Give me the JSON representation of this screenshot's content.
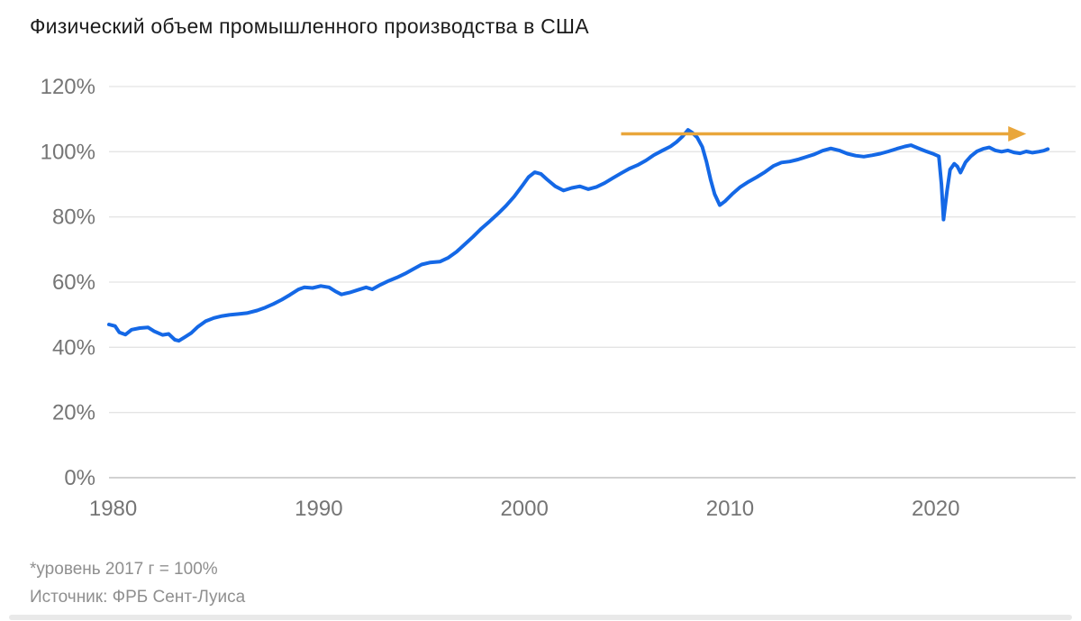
{
  "title": "Физический объем промышленного производства в США",
  "footnotes": {
    "note": "*уровень 2017 г = 100%",
    "source": "Источник: ФРБ Сент-Луиса"
  },
  "colors": {
    "line_blue": "#1468e6",
    "arrow_amber": "#e9a63b",
    "grid": "#e4e4e4",
    "zero_line": "#d2d2d2",
    "axis_text": "#757575",
    "title_text": "#1c1c1c",
    "footnote_text": "#8f8f8f"
  },
  "chart_data": {
    "type": "line",
    "title": "Физический объем промышленного производства в США",
    "xlabel": "",
    "ylabel": "",
    "grid": "horizontal",
    "legend": "none",
    "x_axis": {
      "range": [
        1979.8,
        2026.8
      ],
      "ticks": [
        {
          "value": 1980,
          "label": "1980"
        },
        {
          "value": 1990,
          "label": "1990"
        },
        {
          "value": 2000,
          "label": "2000"
        },
        {
          "value": 2010,
          "label": "2010"
        },
        {
          "value": 2020,
          "label": "2020"
        }
      ]
    },
    "y_axis": {
      "range": [
        0,
        120
      ],
      "ticks": [
        {
          "value": 0,
          "label": "0%"
        },
        {
          "value": 20,
          "label": "20%"
        },
        {
          "value": 40,
          "label": "40%"
        },
        {
          "value": 60,
          "label": "60%"
        },
        {
          "value": 80,
          "label": "80%"
        },
        {
          "value": 100,
          "label": "100%"
        },
        {
          "value": 120,
          "label": "120%"
        }
      ]
    },
    "annotation_arrow": {
      "from_year": 2004.7,
      "to_year": 2024.4,
      "value_pct": 105.5,
      "color": "#e9a63b"
    },
    "series": [
      {
        "color": "#1468e6",
        "points": [
          [
            1979.8,
            47.0
          ],
          [
            1980.1,
            46.5
          ],
          [
            1980.3,
            44.6
          ],
          [
            1980.6,
            43.9
          ],
          [
            1980.9,
            45.4
          ],
          [
            1981.3,
            45.9
          ],
          [
            1981.7,
            46.1
          ],
          [
            1982.0,
            44.9
          ],
          [
            1982.4,
            43.8
          ],
          [
            1982.7,
            44.1
          ],
          [
            1983.0,
            42.3
          ],
          [
            1983.2,
            42.0
          ],
          [
            1983.5,
            43.2
          ],
          [
            1983.8,
            44.4
          ],
          [
            1984.1,
            46.2
          ],
          [
            1984.5,
            48.0
          ],
          [
            1984.9,
            49.0
          ],
          [
            1985.3,
            49.6
          ],
          [
            1985.7,
            50.0
          ],
          [
            1986.1,
            50.2
          ],
          [
            1986.5,
            50.5
          ],
          [
            1987.0,
            51.3
          ],
          [
            1987.4,
            52.2
          ],
          [
            1987.8,
            53.3
          ],
          [
            1988.2,
            54.6
          ],
          [
            1988.6,
            56.1
          ],
          [
            1989.0,
            57.7
          ],
          [
            1989.3,
            58.4
          ],
          [
            1989.7,
            58.2
          ],
          [
            1990.1,
            58.8
          ],
          [
            1990.5,
            58.4
          ],
          [
            1990.8,
            57.2
          ],
          [
            1991.1,
            56.2
          ],
          [
            1991.5,
            56.8
          ],
          [
            1991.9,
            57.6
          ],
          [
            1992.3,
            58.4
          ],
          [
            1992.6,
            57.8
          ],
          [
            1993.0,
            59.2
          ],
          [
            1993.4,
            60.4
          ],
          [
            1993.8,
            61.4
          ],
          [
            1994.2,
            62.6
          ],
          [
            1994.6,
            64.0
          ],
          [
            1995.0,
            65.4
          ],
          [
            1995.4,
            66.0
          ],
          [
            1995.9,
            66.3
          ],
          [
            1996.3,
            67.5
          ],
          [
            1996.7,
            69.3
          ],
          [
            1997.1,
            71.6
          ],
          [
            1997.5,
            73.9
          ],
          [
            1997.9,
            76.4
          ],
          [
            1998.3,
            78.6
          ],
          [
            1998.7,
            80.9
          ],
          [
            1999.1,
            83.4
          ],
          [
            1999.5,
            86.2
          ],
          [
            1999.9,
            89.6
          ],
          [
            2000.2,
            92.2
          ],
          [
            2000.5,
            93.7
          ],
          [
            2000.8,
            93.2
          ],
          [
            2001.1,
            91.5
          ],
          [
            2001.5,
            89.4
          ],
          [
            2001.9,
            88.1
          ],
          [
            2002.3,
            88.9
          ],
          [
            2002.7,
            89.4
          ],
          [
            2003.1,
            88.5
          ],
          [
            2003.5,
            89.2
          ],
          [
            2003.9,
            90.4
          ],
          [
            2004.3,
            91.9
          ],
          [
            2004.7,
            93.4
          ],
          [
            2005.1,
            94.8
          ],
          [
            2005.5,
            95.9
          ],
          [
            2005.9,
            97.3
          ],
          [
            2006.3,
            99.0
          ],
          [
            2006.7,
            100.3
          ],
          [
            2007.1,
            101.6
          ],
          [
            2007.4,
            103.0
          ],
          [
            2007.7,
            104.8
          ],
          [
            2007.95,
            106.7
          ],
          [
            2008.15,
            105.9
          ],
          [
            2008.4,
            104.4
          ],
          [
            2008.65,
            101.5
          ],
          [
            2008.85,
            97.0
          ],
          [
            2009.05,
            91.5
          ],
          [
            2009.25,
            87.0
          ],
          [
            2009.5,
            83.6
          ],
          [
            2009.75,
            84.8
          ],
          [
            2010.1,
            87.0
          ],
          [
            2010.5,
            89.2
          ],
          [
            2010.9,
            90.8
          ],
          [
            2011.3,
            92.2
          ],
          [
            2011.7,
            93.8
          ],
          [
            2012.1,
            95.6
          ],
          [
            2012.5,
            96.7
          ],
          [
            2012.9,
            97.0
          ],
          [
            2013.3,
            97.6
          ],
          [
            2013.7,
            98.4
          ],
          [
            2014.1,
            99.2
          ],
          [
            2014.5,
            100.3
          ],
          [
            2014.9,
            101.0
          ],
          [
            2015.3,
            100.4
          ],
          [
            2015.7,
            99.4
          ],
          [
            2016.1,
            98.8
          ],
          [
            2016.5,
            98.5
          ],
          [
            2016.9,
            98.9
          ],
          [
            2017.3,
            99.4
          ],
          [
            2017.7,
            100.1
          ],
          [
            2018.1,
            100.9
          ],
          [
            2018.5,
            101.6
          ],
          [
            2018.8,
            102.0
          ],
          [
            2019.1,
            101.2
          ],
          [
            2019.5,
            100.2
          ],
          [
            2019.9,
            99.3
          ],
          [
            2020.15,
            98.6
          ],
          [
            2020.28,
            90.0
          ],
          [
            2020.38,
            79.2
          ],
          [
            2020.55,
            88.0
          ],
          [
            2020.7,
            94.5
          ],
          [
            2020.9,
            96.3
          ],
          [
            2021.05,
            95.5
          ],
          [
            2021.2,
            93.6
          ],
          [
            2021.45,
            96.8
          ],
          [
            2021.7,
            98.6
          ],
          [
            2022.0,
            100.1
          ],
          [
            2022.3,
            100.9
          ],
          [
            2022.6,
            101.3
          ],
          [
            2022.9,
            100.4
          ],
          [
            2023.2,
            100.0
          ],
          [
            2023.5,
            100.4
          ],
          [
            2023.8,
            99.8
          ],
          [
            2024.1,
            99.5
          ],
          [
            2024.4,
            100.1
          ],
          [
            2024.7,
            99.7
          ],
          [
            2025.0,
            100.0
          ],
          [
            2025.25,
            100.3
          ],
          [
            2025.45,
            100.8
          ]
        ]
      }
    ]
  }
}
